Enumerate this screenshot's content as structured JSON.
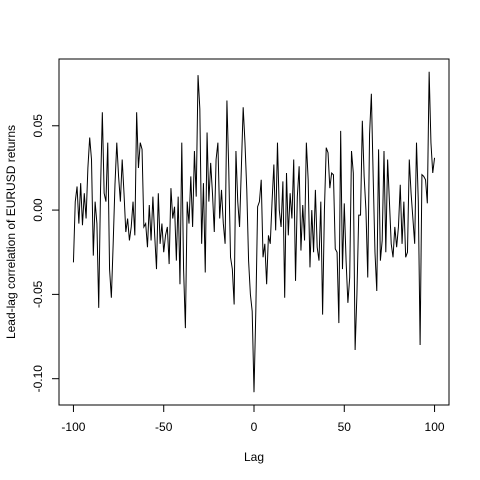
{
  "chart_data": {
    "type": "line",
    "x_label": "Lag",
    "y_label": "Lead-lag correlation of EURUSD returns",
    "color": "#000000",
    "x": [
      -100,
      -99,
      -98,
      -97,
      -96,
      -95,
      -94,
      -93,
      -92,
      -91,
      -90,
      -89,
      -88,
      -87,
      -86,
      -85,
      -84,
      -83,
      -82,
      -81,
      -80,
      -79,
      -78,
      -77,
      -76,
      -75,
      -74,
      -73,
      -72,
      -71,
      -70,
      -69,
      -68,
      -67,
      -66,
      -65,
      -64,
      -63,
      -62,
      -61,
      -60,
      -59,
      -58,
      -57,
      -56,
      -55,
      -54,
      -53,
      -52,
      -51,
      -50,
      -49,
      -48,
      -47,
      -46,
      -45,
      -44,
      -43,
      -42,
      -41,
      -40,
      -39,
      -38,
      -37,
      -36,
      -35,
      -34,
      -33,
      -32,
      -31,
      -30,
      -29,
      -28,
      -27,
      -26,
      -25,
      -24,
      -23,
      -22,
      -21,
      -20,
      -19,
      -18,
      -17,
      -16,
      -15,
      -14,
      -13,
      -12,
      -11,
      -10,
      -9,
      -8,
      -7,
      -6,
      -5,
      -4,
      -3,
      -2,
      -1,
      0,
      1,
      2,
      3,
      4,
      5,
      6,
      7,
      8,
      9,
      10,
      11,
      12,
      13,
      14,
      15,
      16,
      17,
      18,
      19,
      20,
      21,
      22,
      23,
      24,
      25,
      26,
      27,
      28,
      29,
      30,
      31,
      32,
      33,
      34,
      35,
      36,
      37,
      38,
      39,
      40,
      41,
      42,
      43,
      44,
      45,
      46,
      47,
      48,
      49,
      50,
      51,
      52,
      53,
      54,
      55,
      56,
      57,
      58,
      59,
      60,
      61,
      62,
      63,
      64,
      65,
      66,
      67,
      68,
      69,
      70,
      71,
      72,
      73,
      74,
      75,
      76,
      77,
      78,
      79,
      80,
      81,
      82,
      83,
      84,
      85,
      86,
      87,
      88,
      89,
      90,
      91,
      92,
      93,
      94,
      95,
      96,
      97,
      98,
      99,
      100
    ],
    "values": [
      -0.031,
      0.005,
      0.014,
      -0.008,
      0.016,
      -0.009,
      0.01,
      -0.005,
      0.025,
      0.043,
      0.03,
      -0.027,
      0.005,
      -0.008,
      -0.058,
      0.012,
      0.058,
      0.01,
      0.005,
      0.04,
      -0.035,
      -0.052,
      -0.02,
      0.015,
      0.04,
      0.02,
      0.005,
      0.03,
      0.01,
      -0.013,
      -0.005,
      -0.018,
      -0.01,
      0.005,
      -0.015,
      0.058,
      0.025,
      0.04,
      0.036,
      -0.01,
      -0.008,
      -0.022,
      0.003,
      -0.018,
      0.008,
      -0.015,
      -0.035,
      0.01,
      -0.02,
      -0.008,
      -0.025,
      -0.015,
      -0.01,
      -0.032,
      0.013,
      -0.005,
      0.002,
      -0.03,
      0.008,
      -0.044,
      0.04,
      -0.035,
      -0.07,
      0.005,
      -0.008,
      0.02,
      -0.01,
      0.035,
      0.008,
      0.08,
      0.06,
      -0.02,
      0.016,
      -0.037,
      0.046,
      0.005,
      0.028,
      0.01,
      -0.013,
      0.03,
      0.04,
      -0.005,
      0.012,
      -0.008,
      -0.02,
      0.065,
      0.025,
      -0.028,
      -0.035,
      -0.056,
      0.035,
      0.005,
      -0.01,
      0.025,
      0.061,
      0.04,
      0.012,
      -0.03,
      -0.05,
      -0.06,
      -0.108,
      -0.06,
      0.002,
      0.005,
      0.018,
      -0.028,
      -0.02,
      -0.044,
      -0.015,
      -0.02,
      0.005,
      0.027,
      -0.012,
      0.04,
      0.0,
      -0.01,
      0.017,
      -0.052,
      0.022,
      -0.015,
      0.01,
      -0.005,
      0.03,
      -0.042,
      0.008,
      0.026,
      -0.024,
      0.003,
      -0.018,
      0.04,
      0.018,
      -0.034,
      0.0,
      -0.025,
      0.012,
      -0.022,
      -0.03,
      0.005,
      -0.062,
      0.0,
      0.037,
      0.034,
      0.013,
      0.022,
      0.021,
      -0.023,
      -0.025,
      -0.067,
      0.047,
      -0.035,
      0.004,
      -0.03,
      -0.055,
      -0.04,
      0.035,
      0.022,
      -0.083,
      -0.05,
      -0.003,
      -0.003,
      0.053,
      0.02,
      0.0,
      -0.04,
      0.045,
      0.069,
      0.02,
      -0.025,
      -0.048,
      0.036,
      -0.03,
      -0.018,
      0.035,
      -0.025,
      0.03,
      0.005,
      -0.02,
      -0.028,
      -0.01,
      -0.022,
      -0.01,
      0.015,
      -0.02,
      0.005,
      -0.028,
      -0.025,
      0.03,
      0.01,
      -0.005,
      -0.02,
      0.04,
      0.005,
      -0.08,
      0.021,
      0.02,
      0.018,
      0.004,
      0.082,
      0.04,
      0.022,
      0.031
    ],
    "xlim": [
      -108,
      108
    ],
    "ylim": [
      -0.1156,
      0.0896
    ],
    "xticks": [
      -100,
      -50,
      0,
      50,
      100
    ],
    "yticks": [
      {
        "value": -0.1,
        "label": "-0.10"
      },
      -0.05,
      {
        "value": 0,
        "label": "0.00"
      },
      0.05
    ]
  }
}
